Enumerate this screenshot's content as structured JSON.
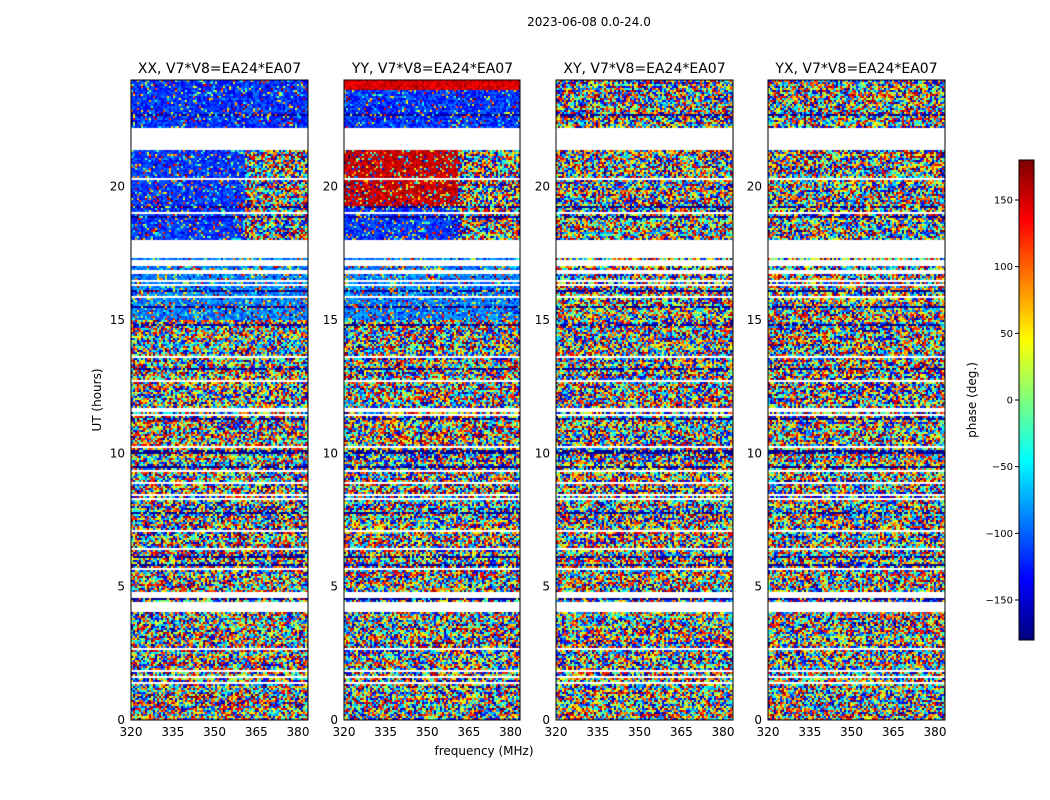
{
  "chart_data": {
    "type": "heatmap",
    "title": "2023-06-08 0.0-24.0",
    "xlabel": "frequency (MHz)",
    "ylabel": "UT (hours)",
    "xlim": [
      320,
      382
    ],
    "ylim": [
      0,
      24
    ],
    "xticks": [
      "320",
      "335",
      "350",
      "365",
      "380"
    ],
    "yticks": [
      "0",
      "5",
      "10",
      "15",
      "20"
    ],
    "panels": [
      {
        "name": "xx",
        "title": "XX, V7*V8=EA24*EA07"
      },
      {
        "name": "yy",
        "title": "YY, V7*V8=EA24*EA07"
      },
      {
        "name": "xy",
        "title": "XY, V7*V8=EA24*EA07"
      },
      {
        "name": "yx",
        "title": "YX, V7*V8=EA24*EA07"
      }
    ],
    "colorbar": {
      "label": "phase (deg.)",
      "range": [
        -180,
        180
      ],
      "ticks": [
        "150",
        "100",
        "50",
        "0",
        "−50",
        "−100",
        "−150"
      ],
      "colormap": "jet",
      "colors": [
        "#00007f",
        "#0000ff",
        "#007fff",
        "#00ffff",
        "#7fff7f",
        "#ffff00",
        "#ff7f00",
        "#ff0000",
        "#7f0000"
      ]
    },
    "blank_ut_ranges": [
      [
        17.35,
        18.0
      ],
      [
        21.4,
        22.2
      ],
      [
        4.05,
        4.45
      ],
      [
        4.6,
        4.8
      ],
      [
        1.6,
        1.65
      ],
      [
        16.7,
        16.9
      ]
    ],
    "panel_style": {
      "xx": "coherent_blue_top",
      "yy": "coherent_red_blue_top",
      "xy": "noise",
      "yx": "noise"
    }
  }
}
